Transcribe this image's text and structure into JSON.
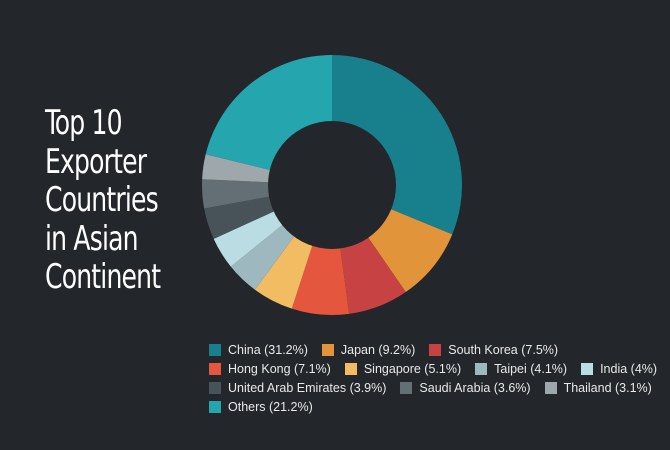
{
  "title": "Top 10\nExporter\nCountries\nin Asian\nContinent",
  "background": "#23262b",
  "chart_data": {
    "type": "pie",
    "variant": "donut",
    "title": "Top 10 Exporter Countries in Asian Continent",
    "legend_position": "bottom",
    "categories": [
      "China",
      "Japan",
      "South Korea",
      "Hong Kong",
      "Singapore",
      "Taipei",
      "India",
      "United Arab Emirates",
      "Saudi Arabia",
      "Thailand",
      "Others"
    ],
    "values": [
      31.2,
      9.2,
      7.5,
      7.1,
      5.1,
      4.1,
      4.0,
      3.9,
      3.6,
      3.1,
      21.2
    ],
    "colors": [
      "#17808c",
      "#e1943a",
      "#c74242",
      "#e4573e",
      "#f2bd62",
      "#9db8be",
      "#b9dde3",
      "#475359",
      "#636f74",
      "#9ea7ab",
      "#25a6ae"
    ],
    "labels": [
      "China (31.2%)",
      "Japan (9.2%)",
      "South Korea (7.5%)",
      "Hong Kong (7.1%)",
      "Singapore (5.1%)",
      "Taipei (4.1%)",
      "India (4%)",
      "United Arab Emirates (3.9%)",
      "Saudi Arabia (3.6%)",
      "Thailand (3.1%)",
      "Others (21.2%)"
    ]
  },
  "legend_rows": [
    [
      0,
      1,
      2
    ],
    [
      3,
      4,
      5,
      6
    ],
    [
      7,
      8,
      9
    ],
    [
      10
    ]
  ]
}
